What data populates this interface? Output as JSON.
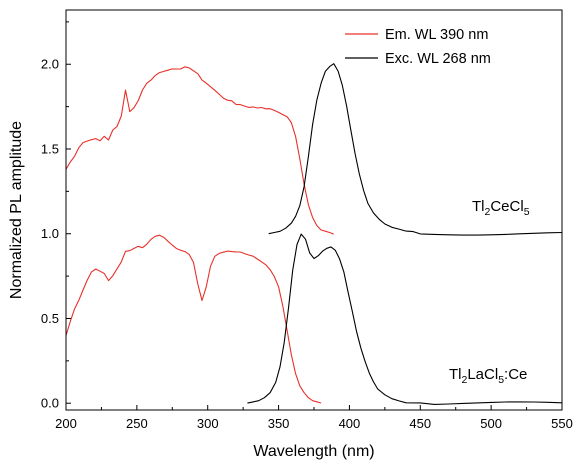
{
  "chart_data": {
    "type": "line",
    "xlabel": "Wavelength (nm)",
    "ylabel": "Normalized PL amplitude",
    "xlim": [
      200,
      550
    ],
    "ylim": [
      -0.04,
      2.32
    ],
    "xticks": [
      "200",
      "250",
      "300",
      "350",
      "400",
      "450",
      "500",
      "550"
    ],
    "yticks": [
      "0.0",
      "0.5",
      "1.0",
      "1.5",
      "2.0"
    ],
    "grid": false,
    "legend_position": "top-right",
    "legend": [
      {
        "label": "Em. WL 390 nm",
        "color": "#e8302a"
      },
      {
        "label": "Exc. WL 268 nm",
        "color": "#000000"
      }
    ],
    "annotations": [
      {
        "main": "Tl",
        "sub": "2",
        "main2": "CeCl",
        "sub2": "5",
        "tail": ""
      },
      {
        "main": "Tl",
        "sub": "2",
        "main2": "LaCl",
        "sub2": "5",
        "tail": ":Ce"
      }
    ],
    "series": [
      {
        "name": "Em. WL 390 nm",
        "sample": "Tl2CeCl5",
        "color": "#e8302a",
        "x": [
          200,
          203,
          206,
          209,
          212,
          215,
          218,
          221,
          224,
          227,
          230,
          233,
          236,
          239,
          242,
          245,
          248,
          251,
          254,
          257,
          260,
          263,
          266,
          269,
          272,
          275,
          278,
          281,
          284,
          287,
          290,
          293,
          296,
          299,
          302,
          305,
          308,
          311,
          314,
          317,
          320,
          323,
          326,
          329,
          332,
          335,
          338,
          341,
          344,
          347,
          350,
          353,
          356,
          359,
          362,
          365,
          368,
          371,
          374,
          377,
          380,
          383,
          386,
          389
        ],
        "y": [
          1.38,
          1.42,
          1.45,
          1.5,
          1.53,
          1.54,
          1.55,
          1.56,
          1.55,
          1.58,
          1.56,
          1.62,
          1.64,
          1.7,
          1.85,
          1.72,
          1.74,
          1.78,
          1.84,
          1.88,
          1.9,
          1.93,
          1.95,
          1.96,
          1.97,
          1.98,
          1.98,
          1.98,
          1.99,
          1.98,
          1.96,
          1.94,
          1.9,
          1.88,
          1.86,
          1.84,
          1.82,
          1.8,
          1.79,
          1.79,
          1.77,
          1.77,
          1.76,
          1.75,
          1.75,
          1.74,
          1.74,
          1.73,
          1.73,
          1.72,
          1.71,
          1.7,
          1.69,
          1.66,
          1.58,
          1.45,
          1.3,
          1.18,
          1.1,
          1.05,
          1.02,
          1.01,
          1.0,
          0.99
        ]
      },
      {
        "name": "Exc. WL 268 nm",
        "sample": "Tl2CeCl5",
        "color": "#000000",
        "x": [
          343,
          347,
          351,
          355,
          359,
          362,
          365,
          368,
          371,
          374,
          377,
          380,
          383,
          386,
          389,
          392,
          395,
          398,
          401,
          404,
          407,
          410,
          413,
          417,
          421,
          425,
          430,
          435,
          440,
          445,
          450,
          460,
          470,
          480,
          490,
          500,
          510,
          520,
          530,
          540,
          550
        ],
        "y": [
          1.0,
          1.01,
          1.02,
          1.04,
          1.07,
          1.11,
          1.17,
          1.28,
          1.45,
          1.64,
          1.78,
          1.88,
          1.95,
          1.98,
          2.0,
          1.96,
          1.88,
          1.76,
          1.62,
          1.48,
          1.36,
          1.26,
          1.18,
          1.12,
          1.08,
          1.05,
          1.03,
          1.02,
          1.01,
          1.01,
          1.0,
          1.0,
          1.0,
          1.0,
          1.0,
          1.0,
          1.0,
          1.0,
          1.0,
          1.0,
          1.0
        ]
      },
      {
        "name": "Em. WL 390 nm",
        "sample": "Tl2LaCl5:Ce",
        "color": "#e8302a",
        "x": [
          200,
          203,
          206,
          209,
          212,
          215,
          218,
          221,
          224,
          227,
          230,
          233,
          236,
          239,
          242,
          245,
          248,
          251,
          254,
          257,
          260,
          263,
          266,
          269,
          272,
          275,
          278,
          281,
          284,
          287,
          290,
          293,
          296,
          299,
          302,
          305,
          308,
          311,
          314,
          317,
          320,
          323,
          326,
          329,
          332,
          335,
          338,
          341,
          344,
          347,
          350,
          353,
          356,
          359,
          362,
          365,
          368,
          371,
          374,
          377,
          380
        ],
        "y": [
          0.4,
          0.48,
          0.55,
          0.6,
          0.66,
          0.72,
          0.77,
          0.79,
          0.78,
          0.77,
          0.73,
          0.76,
          0.8,
          0.84,
          0.9,
          0.9,
          0.91,
          0.92,
          0.91,
          0.93,
          0.96,
          0.98,
          0.99,
          0.98,
          0.96,
          0.94,
          0.92,
          0.91,
          0.9,
          0.88,
          0.83,
          0.7,
          0.6,
          0.68,
          0.8,
          0.86,
          0.88,
          0.89,
          0.9,
          0.9,
          0.9,
          0.9,
          0.89,
          0.88,
          0.87,
          0.85,
          0.83,
          0.81,
          0.78,
          0.74,
          0.68,
          0.57,
          0.43,
          0.29,
          0.18,
          0.11,
          0.07,
          0.04,
          0.02,
          0.01,
          0.0
        ]
      },
      {
        "name": "Exc. WL 268 nm",
        "sample": "Tl2LaCl5:Ce",
        "color": "#000000",
        "x": [
          328,
          332,
          336,
          340,
          344,
          348,
          351,
          354,
          357,
          360,
          363,
          366,
          369,
          372,
          375,
          378,
          381,
          384,
          387,
          390,
          393,
          396,
          399,
          402,
          405,
          408,
          411,
          414,
          417,
          420,
          425,
          430,
          435,
          440,
          450,
          460,
          470,
          480,
          490,
          500,
          510,
          520,
          530,
          540,
          550
        ],
        "y": [
          0.0,
          0.01,
          0.02,
          0.04,
          0.07,
          0.13,
          0.22,
          0.36,
          0.56,
          0.78,
          0.93,
          0.99,
          0.96,
          0.88,
          0.85,
          0.87,
          0.9,
          0.92,
          0.93,
          0.91,
          0.86,
          0.78,
          0.66,
          0.54,
          0.42,
          0.32,
          0.24,
          0.17,
          0.12,
          0.08,
          0.05,
          0.03,
          0.02,
          0.01,
          0.01,
          0.0,
          0.0,
          0.0,
          0.0,
          0.0,
          0.0,
          0.0,
          0.0,
          0.0,
          0.0
        ]
      }
    ]
  }
}
